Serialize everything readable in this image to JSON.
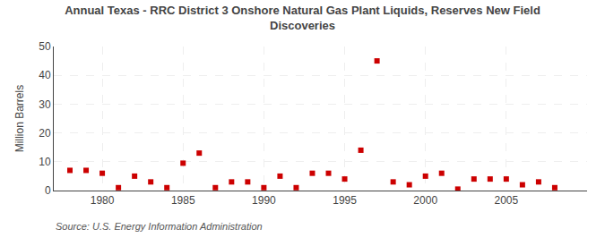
{
  "chart_data": {
    "type": "scatter",
    "title": "Annual Texas - RRC District 3 Onshore Natural Gas Plant Liquids, Reserves New Field\nDiscoveries",
    "ylabel": "Million Barrels",
    "annotations": [
      "Source: U.S. Energy Information Administration"
    ],
    "x": [
      1978,
      1979,
      1980,
      1981,
      1982,
      1983,
      1984,
      1985,
      1986,
      1987,
      1988,
      1989,
      1990,
      1991,
      1992,
      1993,
      1994,
      1995,
      1996,
      1997,
      1998,
      1999,
      2000,
      2001,
      2002,
      2003,
      2004,
      2005,
      2006,
      2007,
      2008
    ],
    "values": [
      7.0,
      7.0,
      6.0,
      1.0,
      5.0,
      3.0,
      1.0,
      9.5,
      13.0,
      1.0,
      3.0,
      3.0,
      1.0,
      5.0,
      1.0,
      6.0,
      6.0,
      4.0,
      14.0,
      45.0,
      3.0,
      2.0,
      5.0,
      6.0,
      0.5,
      4.0,
      4.0,
      4.0,
      2.0,
      3.0,
      1.0
    ],
    "color": "#cc0000",
    "marker": "square",
    "xlim": [
      1977,
      2010
    ],
    "xticks": [
      1980,
      1985,
      1990,
      1995,
      2000,
      2005
    ],
    "ylim": [
      0,
      50
    ],
    "yticks": [
      0,
      10,
      20,
      30,
      40,
      50
    ],
    "grid": true
  }
}
